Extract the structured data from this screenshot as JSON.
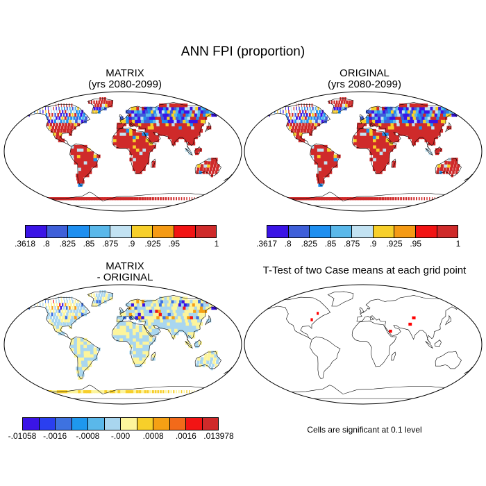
{
  "title": "ANN FPI (proportion)",
  "panels": {
    "matrix": {
      "title_line1": "MATRIX",
      "title_line2": "(yrs 2080-2099)"
    },
    "original": {
      "title_line1": "ORIGINAL",
      "title_line2": "(yrs 2080-2099)"
    },
    "difference": {
      "title_line1": "MATRIX",
      "title_line2": "- ORIGINAL"
    },
    "ttest": {
      "title": "T-Test of two Case means at each grid point",
      "note": "Cells are significant at 0.1 level"
    }
  },
  "colorbars": {
    "matrix": {
      "colors": [
        "#3a14e6",
        "#3e5fd9",
        "#1e8ff0",
        "#5ab8ea",
        "#c2e2f2",
        "#f7cf2a",
        "#f59a14",
        "#f21414",
        "#cf2a2a"
      ],
      "labels": [
        ".3618",
        ".8",
        ".825",
        ".85",
        ".875",
        ".9",
        ".925",
        ".95",
        "1"
      ]
    },
    "original": {
      "colors": [
        "#3a14e6",
        "#3e5fd9",
        "#1e8ff0",
        "#5ab8ea",
        "#c2e2f2",
        "#f7cf2a",
        "#f59a14",
        "#f21414",
        "#cf2a2a"
      ],
      "labels": [
        ".3617",
        ".8",
        ".825",
        ".85",
        ".875",
        ".9",
        ".925",
        ".95",
        "1"
      ]
    },
    "difference": {
      "colors": [
        "#3a14e6",
        "#2a3ff0",
        "#3e72e0",
        "#1e98ee",
        "#5ab8ea",
        "#a9d6ef",
        "#fdf59c",
        "#f7cf2a",
        "#f5a014",
        "#f26a1a",
        "#f21414",
        "#cf2a2a"
      ],
      "labels": [
        "-.01058",
        "-.0016",
        "-.0008",
        "-.000",
        ".0008",
        ".0016",
        ".013978"
      ]
    }
  },
  "colors": {
    "map_border": "#000000",
    "coastline": "#000000",
    "significant_cell": "#ff0000"
  }
}
